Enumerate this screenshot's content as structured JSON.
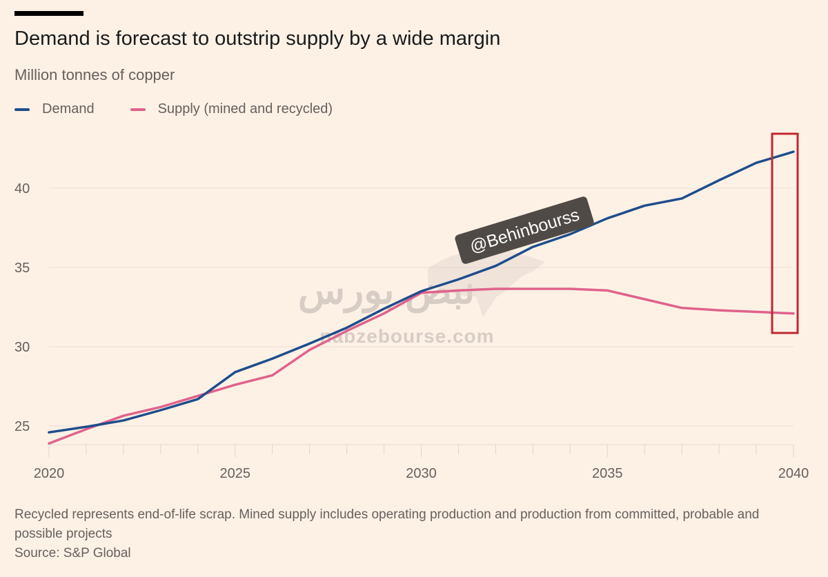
{
  "header": {
    "title": "Demand is forecast to outstrip supply by a wide margin",
    "subtitle": "Million tonnes of copper"
  },
  "legend": [
    {
      "label": "Demand",
      "color": "#1e4d8c"
    },
    {
      "label": "Supply (mined and recycled)",
      "color": "#e0628b"
    }
  ],
  "footnote": {
    "note": "Recycled represents end-of-life scrap. Mined supply includes operating production and production from committed, probable and possible projects",
    "source": "Source: S&P Global"
  },
  "watermarks": {
    "handle": "@Behinbourss",
    "site": "nabzebourse.com",
    "logo_text": "نبض بورس"
  },
  "highlight": {
    "label": "2040 highlight box",
    "color": "#c0272d",
    "year": 2040
  },
  "chart_data": {
    "type": "line",
    "title": "Demand is forecast to outstrip supply by a wide margin",
    "ylabel": "Million tonnes of copper",
    "xlabel": "",
    "x": [
      2020,
      2021,
      2022,
      2023,
      2024,
      2025,
      2026,
      2027,
      2028,
      2029,
      2030,
      2031,
      2032,
      2033,
      2034,
      2035,
      2036,
      2037,
      2038,
      2039,
      2040
    ],
    "series": [
      {
        "name": "Demand",
        "color": "#1e4d8c",
        "values": [
          24.6,
          24.95,
          25.35,
          26.0,
          26.7,
          28.4,
          29.25,
          30.2,
          31.2,
          32.4,
          33.5,
          34.25,
          35.1,
          36.3,
          37.1,
          38.1,
          38.9,
          39.35,
          40.5,
          41.6,
          42.3
        ]
      },
      {
        "name": "Supply (mined and recycled)",
        "color": "#e0628b",
        "values": [
          23.9,
          24.8,
          25.65,
          26.2,
          26.9,
          27.6,
          28.2,
          29.8,
          31.0,
          32.1,
          33.4,
          33.55,
          33.65,
          33.65,
          33.65,
          33.55,
          33.0,
          32.45,
          32.3,
          32.2,
          32.1
        ]
      }
    ],
    "xticks": [
      2020,
      2025,
      2030,
      2035,
      2040
    ],
    "yticks": [
      25,
      30,
      35,
      40
    ],
    "xlim": [
      2020,
      2040
    ],
    "ylim": [
      23.4,
      43
    ],
    "grid": true,
    "legend_position": "top-left"
  }
}
